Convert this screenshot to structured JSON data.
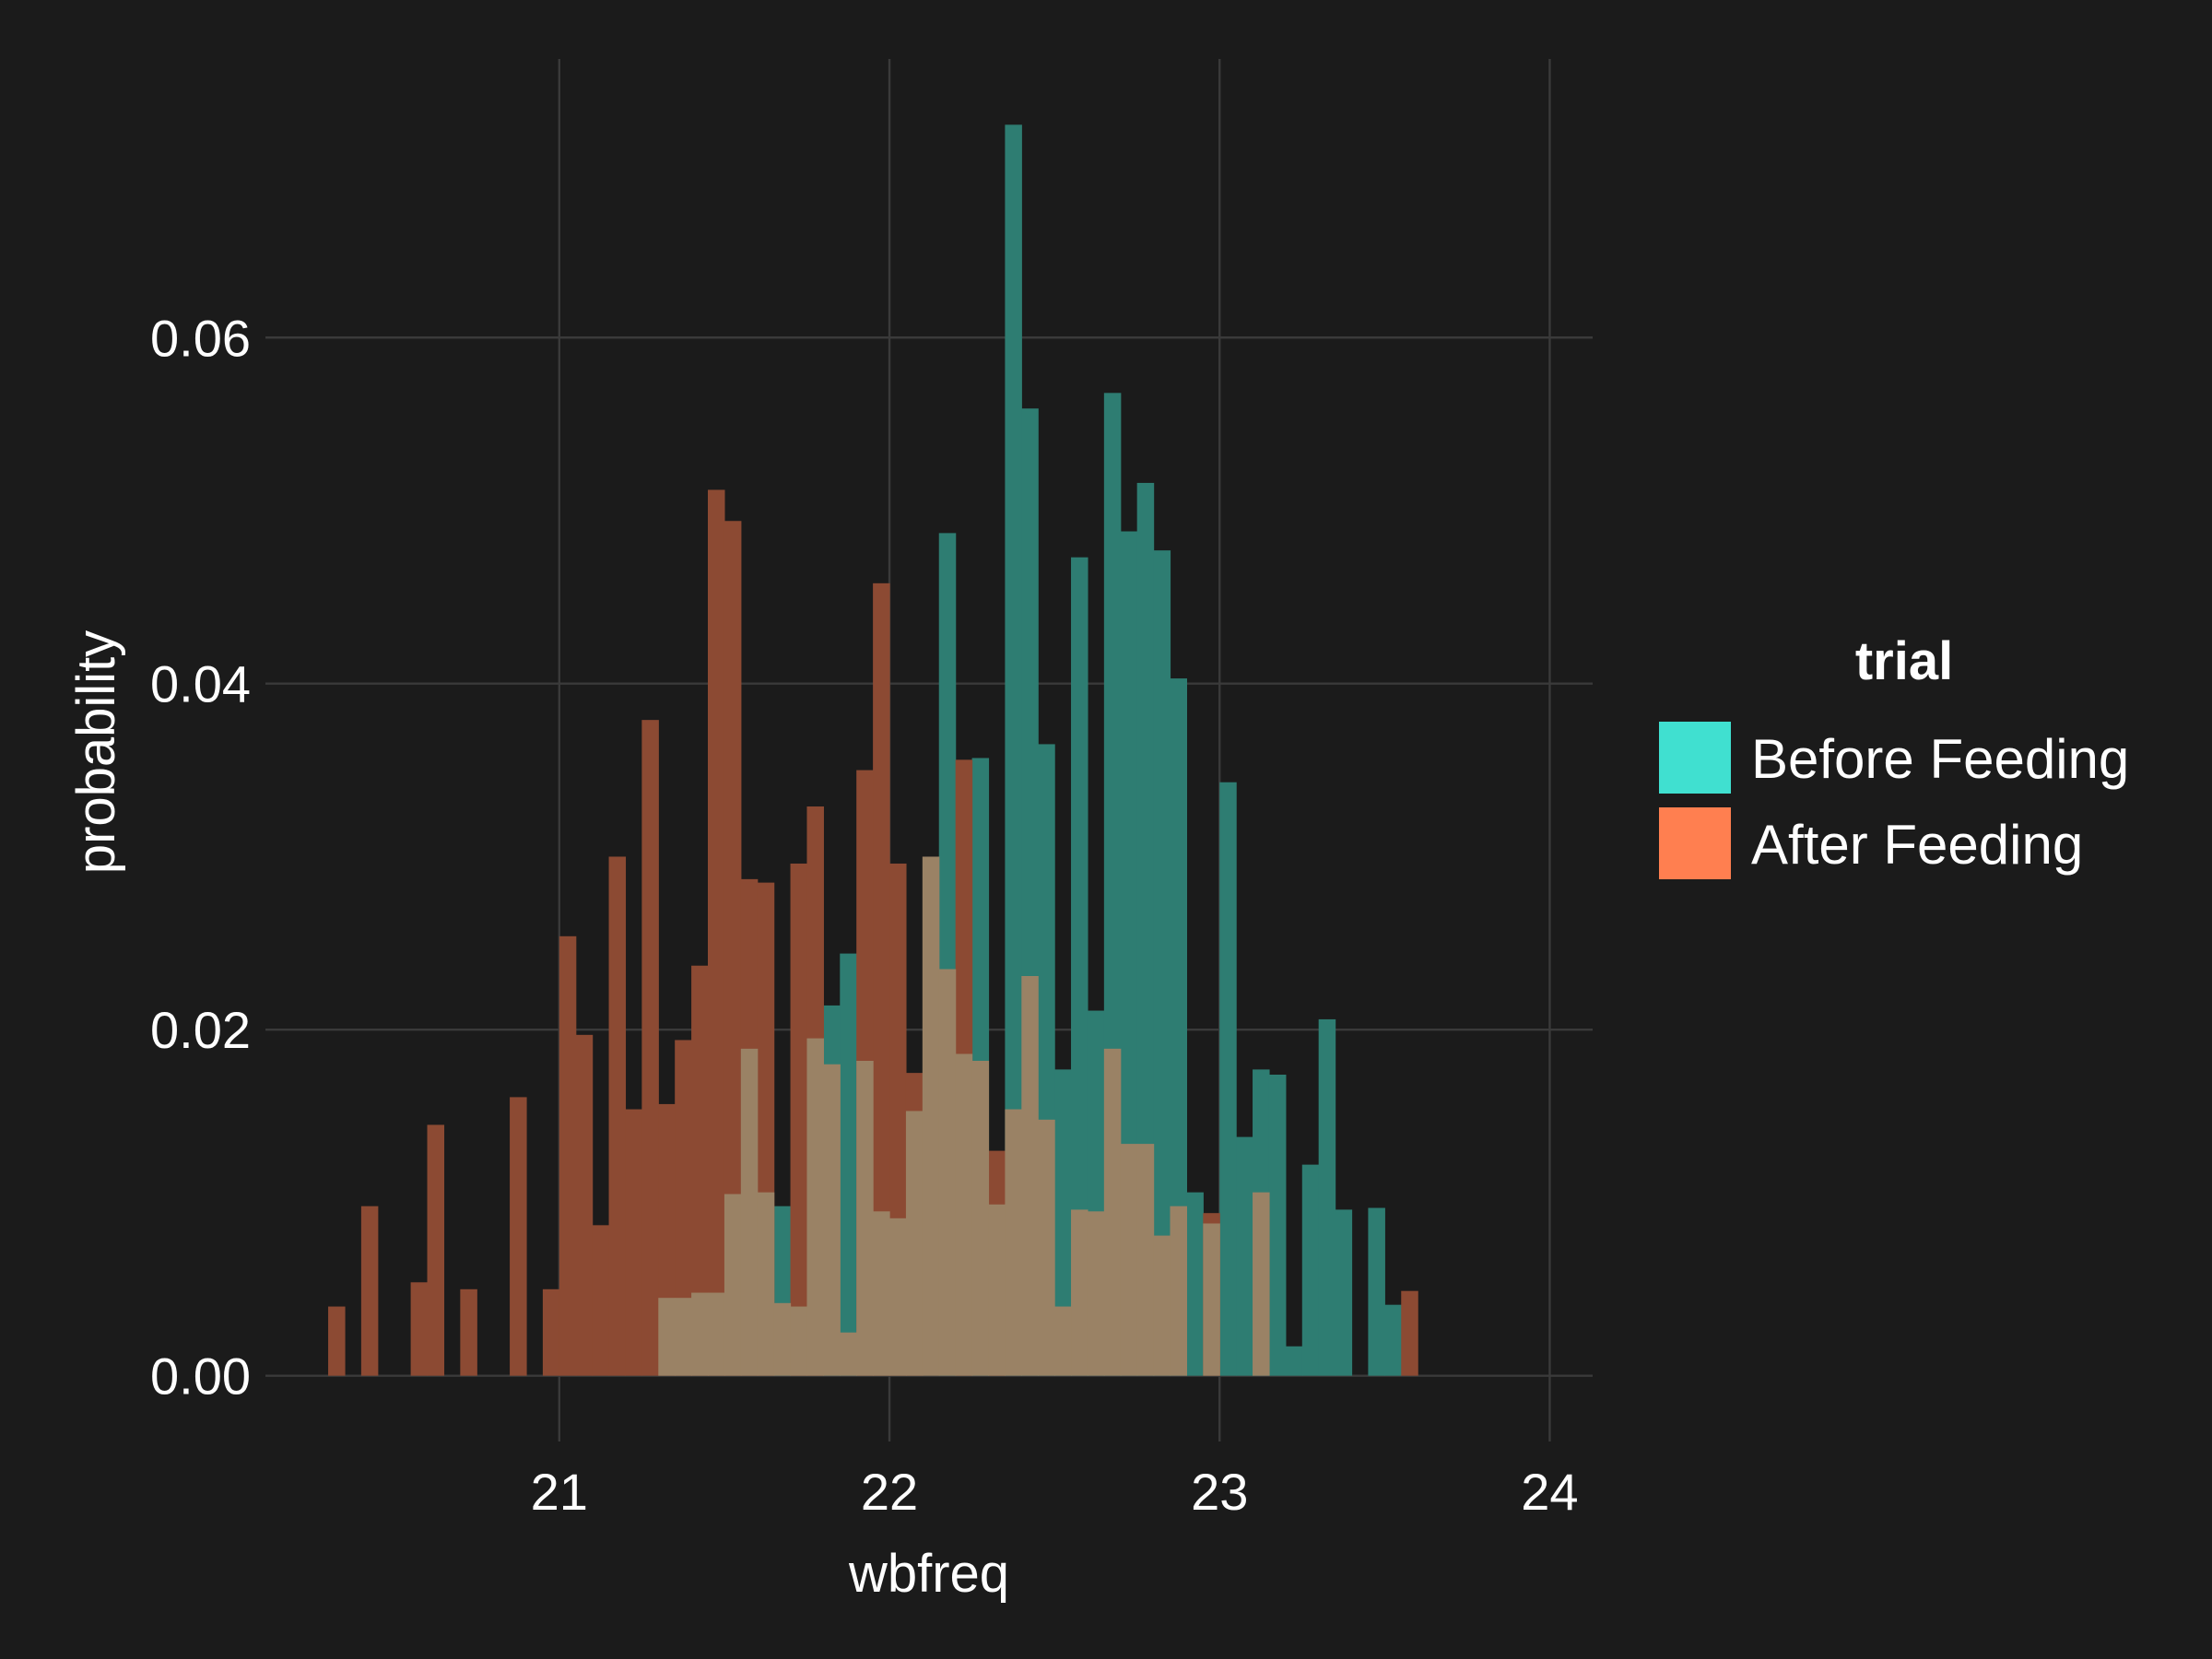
{
  "chart_data": {
    "type": "bar",
    "subtype": "overlaid-histogram",
    "xlabel": "wbfreq",
    "ylabel": "probability",
    "x_ticks": [
      21,
      22,
      23,
      24
    ],
    "x_tick_labels": [
      "21",
      "22",
      "23",
      "24"
    ],
    "y_ticks": [
      0,
      0.02,
      0.04,
      0.06
    ],
    "y_tick_labels": [
      "0.00",
      "0.02",
      "0.04",
      "0.06"
    ],
    "xlim": [
      20.11,
      24.13
    ],
    "ylim": [
      -0.0038,
      0.0761
    ],
    "grid": true,
    "bin_start": 20.3,
    "bin_width": 0.05,
    "legend": {
      "title": "trial",
      "placement": "right",
      "items": [
        {
          "label": "Before Feeding",
          "color": "#40e0d0"
        },
        {
          "label": "After Feeding",
          "color": "#ff7f50"
        }
      ]
    },
    "colors": {
      "background": "#1b1b1b",
      "grid": "#3a3a3a",
      "before_fill": "#2e7d72",
      "after_fill": "#8c4a33",
      "overlap_fill": "#9a8265"
    },
    "series": [
      {
        "name": "Before Feeding",
        "values": [
          0,
          0,
          0,
          0,
          0,
          0,
          0,
          0,
          0,
          0,
          0,
          0,
          0,
          0,
          0,
          0,
          0,
          0,
          0,
          0,
          0.0045,
          0.0045,
          0.0048,
          0.0048,
          0.0105,
          0.0189,
          0.0106,
          0.0098,
          0.004,
          0.0195,
          0.0214,
          0.0244,
          0.0182,
          0.0095,
          0.0091,
          0.0153,
          0.03,
          0.0487,
          0.0186,
          0.0357,
          0.0099,
          0.0723,
          0.0559,
          0.0365,
          0.0177,
          0.0473,
          0.0211,
          0.0568,
          0.0488,
          0.0516,
          0.0477,
          0.0403,
          0.0106,
          0.0088,
          0.0343,
          0.0138,
          0.0177,
          0.0174,
          0.0017,
          0.0122,
          0.0206,
          0.0096,
          0,
          0.0097,
          0.0041,
          0,
          0,
          0,
          0,
          0,
          0,
          0,
          0
        ]
      },
      {
        "name": "After Feeding",
        "values": [
          0.004,
          0,
          0.0098,
          0,
          0,
          0.0054,
          0.0145,
          0,
          0.005,
          0,
          0,
          0.0161,
          0,
          0.005,
          0.0254,
          0.0197,
          0.0087,
          0.03,
          0.0154,
          0.0379,
          0.0157,
          0.0194,
          0.0237,
          0.0512,
          0.0494,
          0.0287,
          0.0285,
          0.0042,
          0.0296,
          0.0329,
          0.018,
          0.0025,
          0.035,
          0.0458,
          0.0296,
          0.0175,
          0.03,
          0.0235,
          0.0356,
          0.0182,
          0.013,
          0.0154,
          0.0231,
          0.0148,
          0.004,
          0.0096,
          0.0095,
          0.0189,
          0.0134,
          0.0134,
          0.0081,
          0.0098,
          0,
          0.0094,
          0,
          0,
          0.0106,
          0,
          0,
          0,
          0,
          0,
          0,
          0,
          0,
          0.0049
        ]
      }
    ]
  }
}
